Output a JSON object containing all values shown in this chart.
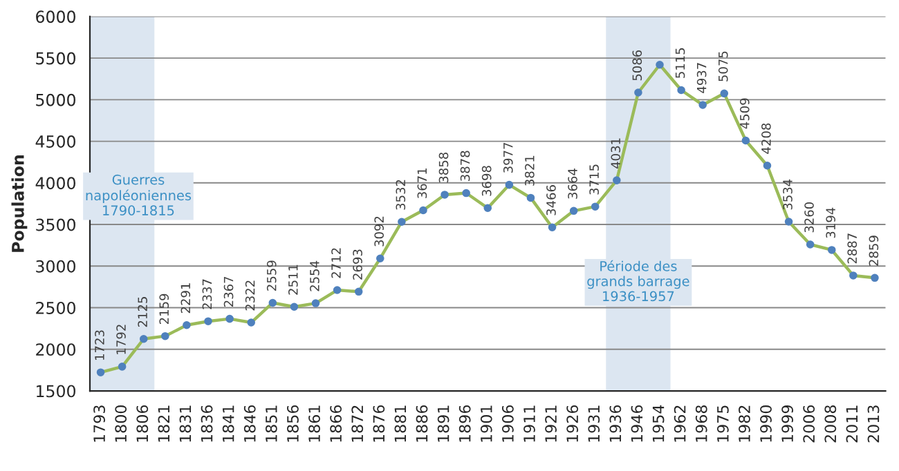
{
  "chart_data": {
    "type": "line",
    "ylabel": "Population",
    "categories": [
      "1793",
      "1800",
      "1806",
      "1821",
      "1831",
      "1836",
      "1841",
      "1846",
      "1851",
      "1856",
      "1861",
      "1866",
      "1872",
      "1876",
      "1881",
      "1886",
      "1891",
      "1896",
      "1901",
      "1906",
      "1911",
      "1921",
      "1926",
      "1931",
      "1936",
      "1946",
      "1954",
      "1962",
      "1968",
      "1975",
      "1982",
      "1990",
      "1999",
      "2006",
      "2008",
      "2011",
      "2013"
    ],
    "series": [
      {
        "color": "#9bbb59",
        "values": [
          1723,
          1792,
          2125,
          2159,
          2291,
          2337,
          2367,
          2322,
          2559,
          2511,
          2554,
          2712,
          2693,
          3092,
          3532,
          3671,
          3858,
          3878,
          3698,
          3977,
          3821,
          3466,
          3664,
          3715,
          4031,
          5086,
          5420,
          5115,
          4937,
          5075,
          4509,
          4208,
          3534,
          3260,
          3194,
          2887,
          2859
        ],
        "value_labels": [
          "1723",
          "1792",
          "2125",
          "2159",
          "2291",
          "2337",
          "2367",
          "2322",
          "2559",
          "2511",
          "2554",
          "2712",
          "2693",
          "3092",
          "3532",
          "3671",
          "3858",
          "3878",
          "3698",
          "3977",
          "3821",
          "3466",
          "3664",
          "3715",
          "4031",
          "5086",
          null,
          "5115",
          "4937",
          "5075",
          "4509",
          "4208",
          "3534",
          "3260",
          "3194",
          "2887",
          "2859"
        ]
      }
    ],
    "bands": [
      {
        "axis": "x",
        "from": "1793",
        "to": "1806",
        "label": "Guerres\nnapoléoniennes\n1790-1815",
        "color": "#dce6f1"
      },
      {
        "axis": "x",
        "from": "1936",
        "to": "1954",
        "label": "Période des\ngrands barrage\n1936-1957",
        "color": "#dce6f1"
      }
    ],
    "ylim": [
      1500,
      6000
    ],
    "yticks": [
      1500,
      2000,
      2500,
      3000,
      3500,
      4000,
      4500,
      5000,
      5500,
      6000
    ],
    "grid": "y",
    "marker": "circle",
    "line_style": "solid",
    "legend": false
  }
}
